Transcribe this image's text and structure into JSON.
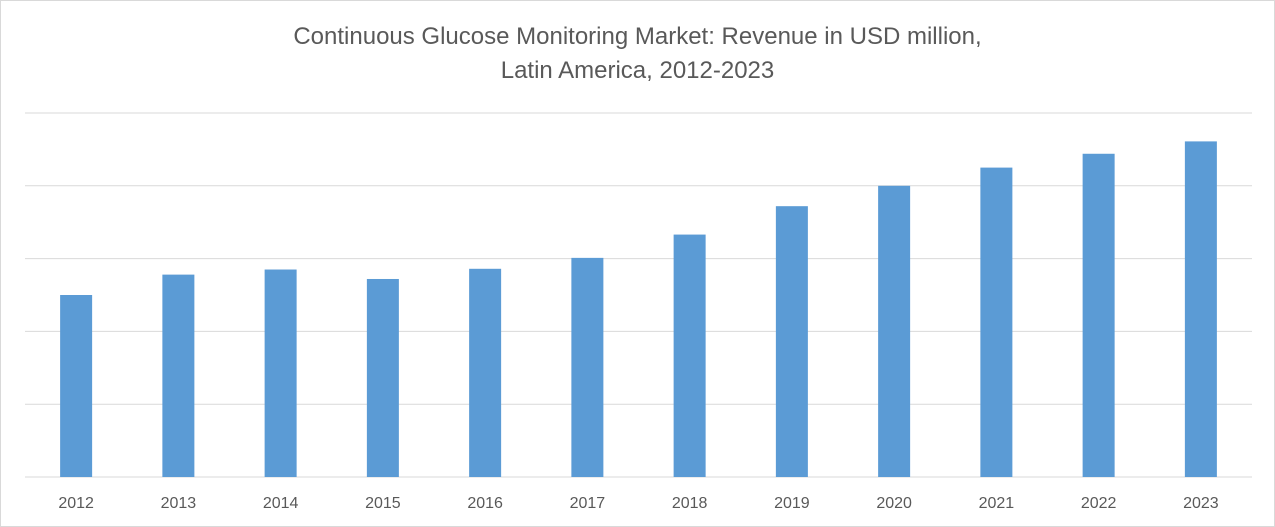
{
  "chart_data": {
    "type": "bar",
    "title_line1": "Continuous Glucose Monitoring Market: Revenue in USD million,",
    "title_line2": "Latin America, 2012-2023",
    "xlabel": "",
    "ylabel": "",
    "categories": [
      "2012",
      "2013",
      "2014",
      "2015",
      "2016",
      "2017",
      "2018",
      "2019",
      "2020",
      "2021",
      "2022",
      "2023"
    ],
    "values": [
      2.5,
      2.78,
      2.85,
      2.72,
      2.86,
      3.01,
      3.33,
      3.72,
      4.0,
      4.25,
      4.44,
      4.61
    ],
    "ylim": [
      0,
      5
    ],
    "y_tick_labels_shown": false,
    "gridlines": true,
    "legend": "none",
    "bar_color": "#5b9bd5",
    "grid_color": "#d9d9d9"
  }
}
